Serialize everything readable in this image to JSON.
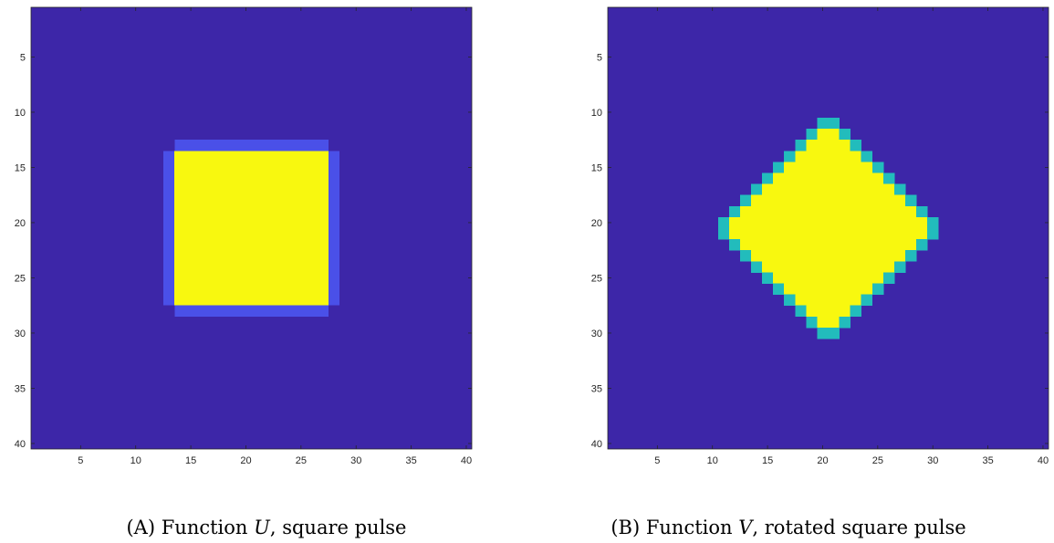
{
  "colors": {
    "background_value": "#3d26a8",
    "edge_value": "#4a50e8",
    "diamond_edge_value": "#22bcbc",
    "peak_value": "#f8f80f",
    "axis": "#262626"
  },
  "chart_data": [
    {
      "type": "heatmap",
      "title": "",
      "xlabel": "",
      "ylabel": "",
      "grid": false,
      "xlim": [
        0.5,
        40.5
      ],
      "ylim": [
        0.5,
        40.5
      ],
      "y_reversed": true,
      "x_ticks": [
        5,
        10,
        15,
        20,
        25,
        30,
        35,
        40
      ],
      "y_ticks": [
        5,
        10,
        15,
        20,
        25,
        30,
        35,
        40
      ],
      "x_tick_labels": [
        "5",
        "10",
        "15",
        "20",
        "25",
        "30",
        "35",
        "40"
      ],
      "y_tick_labels": [
        "5",
        "10",
        "15",
        "20",
        "25",
        "30",
        "35",
        "40"
      ],
      "matrix_size": [
        40,
        40
      ],
      "regions": [
        {
          "level": "background",
          "color": "#3d26a8",
          "cols": [
            1,
            40
          ],
          "rows": [
            1,
            40
          ]
        },
        {
          "level": "edge",
          "color": "#4a50e8",
          "cols": [
            13,
            28
          ],
          "rows": [
            13,
            28
          ]
        },
        {
          "level": "peak",
          "color": "#f8f80f",
          "cols": [
            14,
            27
          ],
          "rows": [
            14,
            27
          ]
        },
        {
          "level": "background",
          "color": "#3d26a8",
          "cells": [
            [
              13,
              13
            ],
            [
              28,
              13
            ],
            [
              13,
              28
            ],
            [
              28,
              28
            ]
          ]
        }
      ],
      "caption": {
        "label": "(A)",
        "text_before": "Function",
        "symbol": "U",
        "text_after": ", square pulse"
      }
    },
    {
      "type": "heatmap",
      "title": "",
      "xlabel": "",
      "ylabel": "",
      "grid": false,
      "xlim": [
        0.5,
        40.5
      ],
      "ylim": [
        0.5,
        40.5
      ],
      "y_reversed": true,
      "x_ticks": [
        5,
        10,
        15,
        20,
        25,
        30,
        35,
        40
      ],
      "y_ticks": [
        5,
        10,
        15,
        20,
        25,
        30,
        35,
        40
      ],
      "x_tick_labels": [
        "5",
        "10",
        "15",
        "20",
        "25",
        "30",
        "35",
        "40"
      ],
      "y_tick_labels": [
        "5",
        "10",
        "15",
        "20",
        "25",
        "30",
        "35",
        "40"
      ],
      "matrix_size": [
        40,
        40
      ],
      "shape": "diamond",
      "center": [
        20.5,
        20.5
      ],
      "edge_color": "#22bcbc",
      "fill_color": "#f8f80f",
      "background_color": "#3d26a8",
      "rows": [
        {
          "row": 11,
          "cols": [
            20,
            21
          ],
          "edge": [
            20,
            21
          ]
        },
        {
          "row": 12,
          "cols": [
            19,
            22
          ],
          "edge": [
            19,
            22
          ]
        },
        {
          "row": 13,
          "cols": [
            18,
            23
          ],
          "edge": [
            18,
            23
          ]
        },
        {
          "row": 14,
          "cols": [
            17,
            24
          ],
          "edge": [
            17,
            24
          ]
        },
        {
          "row": 15,
          "cols": [
            16,
            25
          ],
          "edge": [
            16,
            25
          ]
        },
        {
          "row": 16,
          "cols": [
            15,
            26
          ],
          "edge": [
            15,
            26
          ]
        },
        {
          "row": 17,
          "cols": [
            14,
            27
          ],
          "edge": [
            14,
            27
          ]
        },
        {
          "row": 18,
          "cols": [
            13,
            28
          ],
          "edge": [
            13,
            28
          ]
        },
        {
          "row": 19,
          "cols": [
            12,
            29
          ],
          "edge": [
            12,
            29
          ]
        },
        {
          "row": 20,
          "cols": [
            11,
            30
          ],
          "edge": [
            11,
            30
          ]
        },
        {
          "row": 21,
          "cols": [
            11,
            30
          ],
          "edge": [
            11,
            30
          ]
        },
        {
          "row": 22,
          "cols": [
            12,
            29
          ],
          "edge": [
            12,
            29
          ]
        },
        {
          "row": 23,
          "cols": [
            13,
            28
          ],
          "edge": [
            13,
            28
          ]
        },
        {
          "row": 24,
          "cols": [
            14,
            27
          ],
          "edge": [
            14,
            27
          ]
        },
        {
          "row": 25,
          "cols": [
            15,
            26
          ],
          "edge": [
            15,
            26
          ]
        },
        {
          "row": 26,
          "cols": [
            16,
            25
          ],
          "edge": [
            16,
            25
          ]
        },
        {
          "row": 27,
          "cols": [
            17,
            24
          ],
          "edge": [
            17,
            24
          ]
        },
        {
          "row": 28,
          "cols": [
            18,
            23
          ],
          "edge": [
            18,
            23
          ]
        },
        {
          "row": 29,
          "cols": [
            19,
            22
          ],
          "edge": [
            19,
            22
          ]
        },
        {
          "row": 30,
          "cols": [
            20,
            21
          ],
          "edge": [
            20,
            21
          ]
        }
      ],
      "caption": {
        "label": "(B)",
        "text_before": "Function",
        "symbol": "V",
        "text_after": ", rotated square pulse"
      }
    }
  ]
}
